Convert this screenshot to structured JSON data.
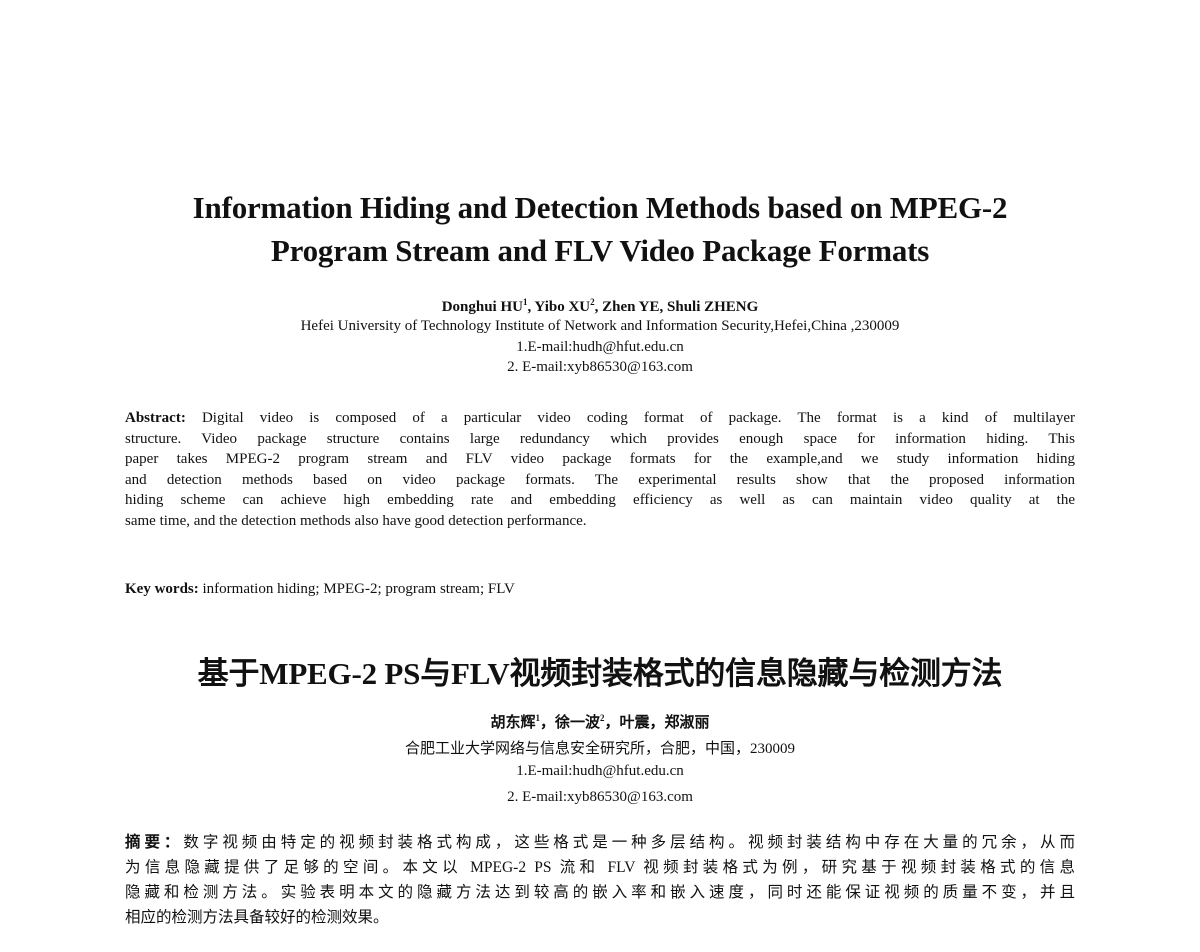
{
  "en": {
    "title_lines": [
      "Information Hiding and Detection Methods based on MPEG-2",
      "Program Stream and FLV Video Package Formats"
    ],
    "authors": [
      {
        "name": "Donghui HU",
        "sup": "1"
      },
      {
        "name": "Yibo XU",
        "sup": "2"
      },
      {
        "name": "Zhen YE",
        "sup": ""
      },
      {
        "name": "Shuli ZHENG",
        "sup": ""
      }
    ],
    "affiliation": "Hefei University of Technology Institute of Network and Information Security,Hefei,China ,230009",
    "emails": [
      "1.E-mail:hudh@hfut.edu.cn",
      "2. E-mail:xyb86530@163.com"
    ],
    "abstract_label": "Abstract:",
    "abstract_lines": [
      " Digital video is composed of a particular video coding format of package. The format is a kind of multilayer",
      "structure. Video package structure contains large redundancy which provides enough space for information hiding. This",
      "paper takes MPEG-2 program stream and FLV video package formats for the example,and we study information hiding",
      "and detection methods based on video package formats. The experimental results show that the proposed information",
      "hiding scheme can achieve high embedding rate and embedding efficiency as well as can maintain video quality at the",
      "same time, and the detection methods also have good detection performance."
    ],
    "keywords_label": "Key words:",
    "keywords": " information hiding; MPEG-2; program stream; FLV"
  },
  "zh": {
    "title": "基于MPEG-2 PS与FLV视频封装格式的信息隐藏与检测方法",
    "authors": [
      {
        "name": "胡东辉",
        "sup": "1"
      },
      {
        "name": "徐一波",
        "sup": "2"
      },
      {
        "name": "叶震",
        "sup": ""
      },
      {
        "name": "郑淑丽",
        "sup": ""
      }
    ],
    "affiliation": "合肥工业大学网络与信息安全研究所，合肥，中国，230009",
    "emails": [
      "1.E-mail:hudh@hfut.edu.cn",
      "2. E-mail:xyb86530@163.com"
    ],
    "abstract_label": "摘要：",
    "abstract_lines": [
      "数字视频由特定的视频封装格式构成，这些格式是一种多层结构。视频封装结构中存在大量的冗余，从而",
      "为信息隐藏提供了足够的空间。本文以 MPEG-2 PS 流和 FLV 视频封装格式为例，研究基于视频封装格式的信息",
      "隐藏和检测方法。实验表明本文的隐藏方法达到较高的嵌入率和嵌入速度，同时还能保证视频的质量不变，并且",
      "相应的检测方法具备较好的检测效果。"
    ]
  }
}
